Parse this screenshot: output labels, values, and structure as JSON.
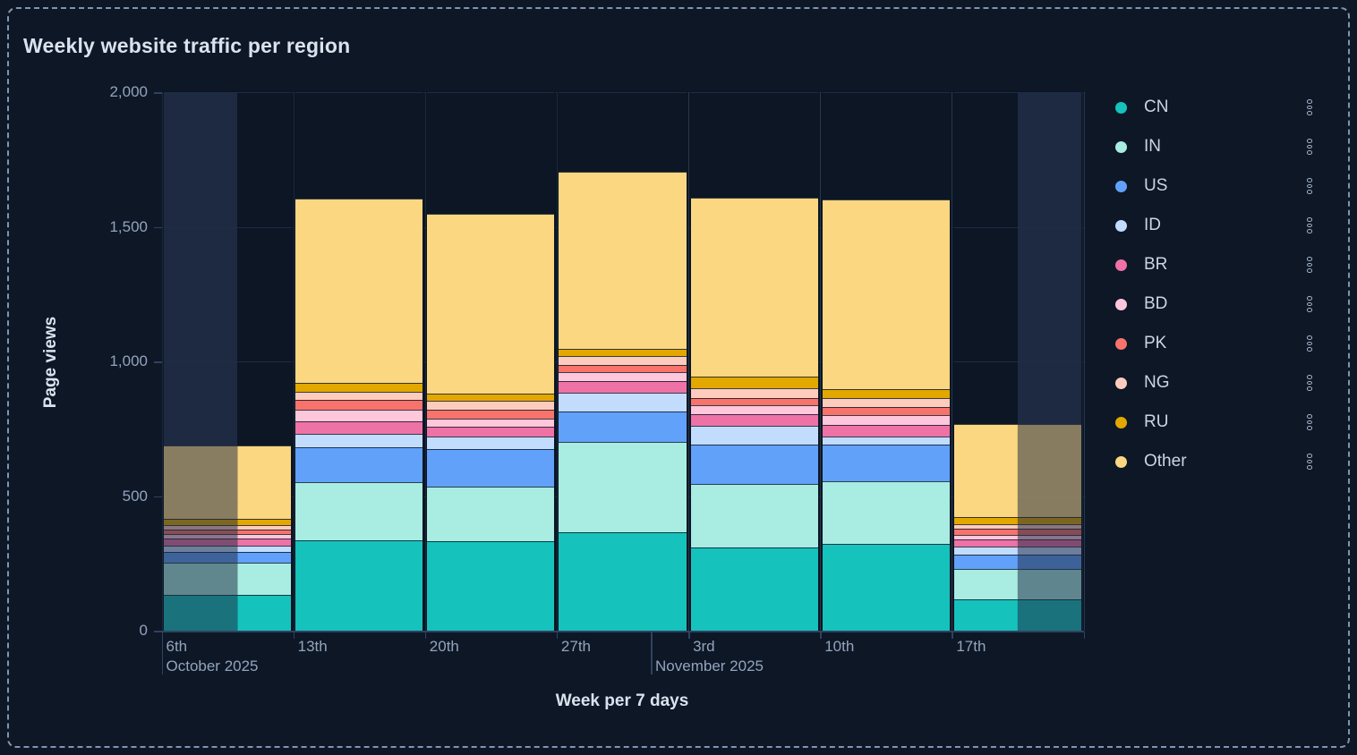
{
  "panel": {
    "title": "Weekly website traffic per region"
  },
  "chart_data": {
    "type": "bar",
    "stacked": true,
    "title": "Weekly website traffic per region",
    "xlabel": "Week per 7 days",
    "ylabel": "Page views",
    "ylim": [
      0,
      2000
    ],
    "grid": true,
    "legend_position": "right",
    "categories": [
      "6th",
      "13th",
      "20th",
      "27th",
      "3rd",
      "10th",
      "17th"
    ],
    "x_axis": {
      "title": "Week per 7 days",
      "days_per_bucket": 7,
      "tick_labels": [
        "6th",
        "13th",
        "20th",
        "27th",
        "3rd",
        "10th",
        "17th"
      ],
      "month_labels": [
        {
          "text": "October 2025",
          "day_offset": 0
        },
        {
          "text": "November 2025",
          "day_offset": 26
        }
      ]
    },
    "y_axis": {
      "title": "Page views",
      "min": 0,
      "max": 2000,
      "tick_values": [
        0,
        500,
        1000,
        1500,
        2000
      ],
      "tick_labels": [
        "0",
        "500",
        "1,000",
        "1,500",
        "2,000"
      ]
    },
    "series": [
      {
        "name": "CN",
        "color": "#16c2bc",
        "values": [
          133,
          334,
          333,
          364,
          308,
          323,
          115
        ]
      },
      {
        "name": "IN",
        "color": "#a8ece2",
        "values": [
          121,
          216,
          202,
          338,
          238,
          231,
          113
        ]
      },
      {
        "name": "US",
        "color": "#61a1fa",
        "values": [
          39,
          131,
          141,
          111,
          146,
          136,
          55
        ]
      },
      {
        "name": "ID",
        "color": "#c2dcfd",
        "values": [
          22,
          50,
          45,
          72,
          70,
          31,
          28
        ]
      },
      {
        "name": "BR",
        "color": "#ee72a6",
        "values": [
          26,
          46,
          35,
          42,
          42,
          43,
          29
        ]
      },
      {
        "name": "BD",
        "color": "#ffc7db",
        "values": [
          17,
          42,
          33,
          33,
          33,
          37,
          17
        ]
      },
      {
        "name": "PK",
        "color": "#f7736b",
        "values": [
          18,
          38,
          31,
          28,
          27,
          28,
          22
        ]
      },
      {
        "name": "NG",
        "color": "#fdccbd",
        "values": [
          17,
          31,
          35,
          33,
          37,
          36,
          17
        ]
      },
      {
        "name": "RU",
        "color": "#e2a800",
        "values": [
          22,
          33,
          25,
          24,
          41,
          31,
          27
        ]
      },
      {
        "name": "Other",
        "color": "#fbd782",
        "values": [
          272,
          684,
          668,
          660,
          665,
          705,
          344
        ]
      }
    ],
    "partial_buckets": [
      {
        "category": "6th",
        "index": 0,
        "dimmed_side": "left",
        "dimmed_fraction": 0.58
      },
      {
        "category": "17th",
        "index": 6,
        "dimmed_side": "right",
        "dimmed_fraction": 0.5
      }
    ]
  },
  "legend": {
    "position": "right",
    "menu_icon": "vertical-dots",
    "items": [
      {
        "label": "CN"
      },
      {
        "label": "IN"
      },
      {
        "label": "US"
      },
      {
        "label": "ID"
      },
      {
        "label": "BR"
      },
      {
        "label": "BD"
      },
      {
        "label": "PK"
      },
      {
        "label": "NG"
      },
      {
        "label": "RU"
      },
      {
        "label": "Other"
      }
    ]
  },
  "colors": {
    "page_background": "#0d1726",
    "plot_background": "#0c1624",
    "partial_region_background": "#1e2a42",
    "gridline": "#1e2c47",
    "axis_text": "#93a4bc",
    "title_text": "#dbe2ee",
    "panel_border": "#8094b2"
  }
}
